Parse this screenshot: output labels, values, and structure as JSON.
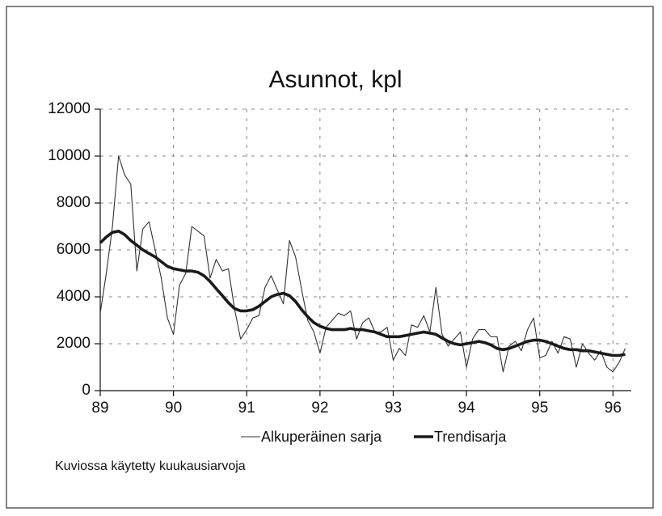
{
  "chart_data": {
    "type": "line",
    "title": "Asunnot, kpl",
    "x": [
      89,
      89.083,
      89.167,
      89.25,
      89.333,
      89.417,
      89.5,
      89.583,
      89.667,
      89.75,
      89.833,
      89.917,
      90,
      90.083,
      90.167,
      90.25,
      90.333,
      90.417,
      90.5,
      90.583,
      90.667,
      90.75,
      90.833,
      90.917,
      91,
      91.083,
      91.167,
      91.25,
      91.333,
      91.417,
      91.5,
      91.583,
      91.667,
      91.75,
      91.833,
      91.917,
      92,
      92.083,
      92.167,
      92.25,
      92.333,
      92.417,
      92.5,
      92.583,
      92.667,
      92.75,
      92.833,
      92.917,
      93,
      93.083,
      93.167,
      93.25,
      93.333,
      93.417,
      93.5,
      93.583,
      93.667,
      93.75,
      93.833,
      93.917,
      94,
      94.083,
      94.167,
      94.25,
      94.333,
      94.417,
      94.5,
      94.583,
      94.667,
      94.75,
      94.833,
      94.917,
      95,
      95.083,
      95.167,
      95.25,
      95.333,
      95.417,
      95.5,
      95.583,
      95.667,
      95.75,
      95.833,
      95.917,
      96,
      96.083,
      96.167
    ],
    "series": [
      {
        "name": "Alkuperäinen sarja",
        "color": "#333333",
        "values": [
          3300,
          5000,
          7000,
          10000,
          9200,
          8800,
          5100,
          6900,
          7200,
          6000,
          4800,
          3100,
          2400,
          4500,
          5000,
          7000,
          6800,
          6600,
          4800,
          5600,
          5100,
          5200,
          3500,
          2200,
          2600,
          3100,
          3200,
          4400,
          4900,
          4300,
          3700,
          6400,
          5700,
          4300,
          3000,
          2500,
          1600,
          2700,
          3000,
          3300,
          3200,
          3400,
          2200,
          2900,
          3100,
          2500,
          2500,
          2700,
          1300,
          1800,
          1500,
          2800,
          2700,
          3200,
          2500,
          4400,
          2400,
          1900,
          2200,
          2500,
          1000,
          2200,
          2600,
          2600,
          2300,
          2300,
          800,
          1900,
          2100,
          1700,
          2600,
          3100,
          1400,
          1500,
          2100,
          1600,
          2300,
          2200,
          1000,
          2000,
          1600,
          1300,
          1700,
          1000,
          800,
          1200,
          1800
        ]
      },
      {
        "name": "Trendisarja",
        "color": "#1a1a1a",
        "values": [
          6300,
          6550,
          6750,
          6800,
          6650,
          6400,
          6200,
          6000,
          5850,
          5700,
          5500,
          5300,
          5200,
          5150,
          5100,
          5100,
          5050,
          4900,
          4650,
          4350,
          4050,
          3750,
          3500,
          3400,
          3400,
          3450,
          3600,
          3800,
          4000,
          4100,
          4150,
          4050,
          3800,
          3450,
          3150,
          2900,
          2750,
          2650,
          2600,
          2600,
          2600,
          2650,
          2600,
          2600,
          2550,
          2500,
          2400,
          2300,
          2300,
          2300,
          2350,
          2400,
          2450,
          2500,
          2450,
          2400,
          2250,
          2100,
          2000,
          1950,
          2000,
          2050,
          2100,
          2050,
          1950,
          1800,
          1750,
          1800,
          1900,
          2000,
          2100,
          2150,
          2150,
          2100,
          2000,
          1900,
          1800,
          1750,
          1750,
          1700,
          1700,
          1650,
          1600,
          1550,
          1500,
          1500,
          1550
        ]
      }
    ],
    "xlim": [
      89,
      96.25
    ],
    "xticks": [
      89,
      90,
      91,
      92,
      93,
      94,
      95,
      96
    ],
    "ylim": [
      0,
      12000
    ],
    "yticks": [
      0,
      2000,
      4000,
      6000,
      8000,
      10000,
      12000
    ],
    "grid": true,
    "footnote": "Kuviossa käytetty kuukausiarvoja"
  }
}
